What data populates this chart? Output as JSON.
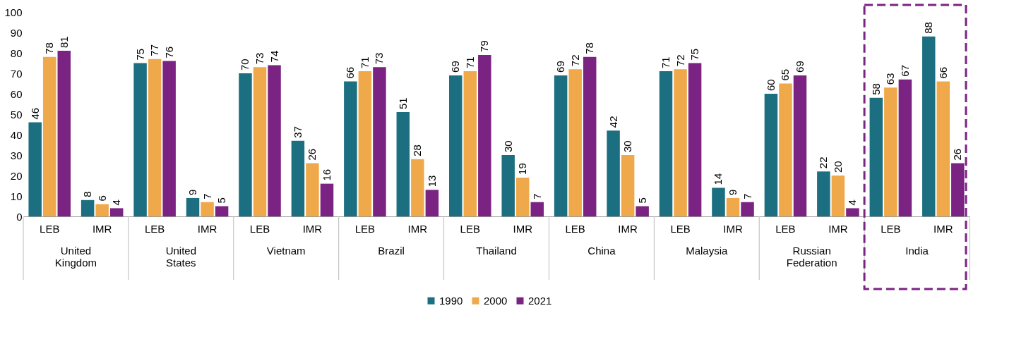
{
  "chart_data": {
    "type": "bar",
    "categories": [
      "LEB",
      "IMR",
      "LEB",
      "IMR",
      "LEB",
      "IMR",
      "LEB",
      "IMR",
      "LEB",
      "IMR",
      "LEB",
      "IMR",
      "LEB",
      "IMR",
      "LEB",
      "IMR",
      "LEB",
      "IMR"
    ],
    "annotations": [
      "United Kingdom",
      "United States",
      "Vietnam",
      "Brazil",
      "Thailand",
      "China",
      "Malaysia",
      "Russian Federation",
      "India"
    ],
    "series": [
      {
        "name": "1990",
        "color": "#1b6f80",
        "values": [
          46,
          8,
          75,
          9,
          70,
          37,
          66,
          51,
          69,
          30,
          69,
          42,
          71,
          14,
          60,
          22,
          58,
          88
        ]
      },
      {
        "name": "2000",
        "color": "#f0a94a",
        "values": [
          78,
          6,
          77,
          7,
          73,
          26,
          71,
          28,
          71,
          19,
          72,
          30,
          72,
          9,
          65,
          20,
          63,
          66
        ]
      },
      {
        "name": "2021",
        "color": "#7b2382",
        "values": [
          81,
          4,
          76,
          5,
          74,
          16,
          73,
          13,
          79,
          7,
          78,
          5,
          75,
          7,
          69,
          4,
          67,
          26
        ]
      }
    ],
    "ylim": [
      0,
      100
    ],
    "yticks": [
      0,
      10,
      20,
      30,
      40,
      50,
      60,
      70,
      80,
      90,
      100
    ],
    "data_labels": true,
    "grid": false,
    "legend": "bottom"
  }
}
